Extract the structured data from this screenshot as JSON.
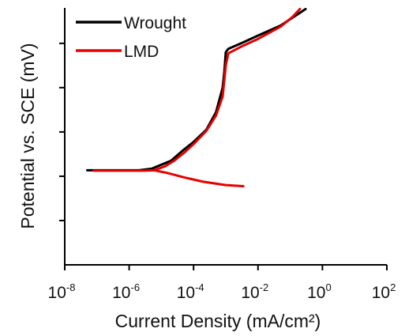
{
  "chart_data": {
    "type": "line",
    "title": "",
    "xlabel": "Current Density (mA/cm²)",
    "ylabel": "Potential vs. SCE (mV)",
    "x_scale": "log",
    "xlim": [
      1e-08,
      100
    ],
    "x_ticks": [
      {
        "base": "10",
        "exp": "-8"
      },
      {
        "base": "10",
        "exp": "-6"
      },
      {
        "base": "10",
        "exp": "-4"
      },
      {
        "base": "10",
        "exp": "-2"
      },
      {
        "base": "10",
        "exp": "0"
      },
      {
        "base": "10",
        "exp": "2"
      }
    ],
    "y_tick_labels": "none shown",
    "legend_position": "top-left",
    "series": [
      {
        "name": "Wrought",
        "color": "#000000",
        "points": [
          [
            5e-08,
            4.27
          ],
          [
            2e-06,
            4.27
          ],
          [
            5e-06,
            4.34
          ],
          [
            2e-05,
            4.7
          ],
          [
            5e-05,
            5.2
          ],
          [
            0.0001,
            5.55
          ],
          [
            0.00025,
            6.1
          ],
          [
            0.0005,
            6.9
          ],
          [
            0.0008,
            8.0
          ],
          [
            0.0009,
            8.7
          ],
          [
            0.001,
            9.6
          ],
          [
            0.0012,
            9.75
          ],
          [
            0.003,
            10.0
          ],
          [
            0.01,
            10.35
          ],
          [
            0.05,
            10.8
          ],
          [
            0.3,
            11.55
          ]
        ]
      },
      {
        "name": "LMD",
        "color": "#e60000",
        "points": [
          [
            8e-08,
            4.25
          ],
          [
            1.5e-06,
            4.25
          ],
          [
            3e-06,
            4.25
          ],
          [
            6e-06,
            4.27
          ],
          [
            1.3e-05,
            4.45
          ],
          [
            2.5e-05,
            4.7
          ],
          [
            5e-05,
            5.05
          ],
          [
            0.0001,
            5.45
          ],
          [
            0.00025,
            6.05
          ],
          [
            0.0005,
            6.75
          ],
          [
            0.0008,
            7.6
          ],
          [
            0.001,
            9.0
          ],
          [
            0.0012,
            9.55
          ],
          [
            0.003,
            9.85
          ],
          [
            0.01,
            10.2
          ],
          [
            0.05,
            10.75
          ],
          [
            0.12,
            11.2
          ],
          [
            0.2,
            11.55
          ]
        ],
        "cathodic_branch": [
          [
            6e-06,
            4.27
          ],
          [
            1.5e-05,
            4.15
          ],
          [
            5e-05,
            3.95
          ],
          [
            0.0002,
            3.75
          ],
          [
            0.001,
            3.6
          ],
          [
            0.0035,
            3.55
          ]
        ]
      }
    ]
  }
}
